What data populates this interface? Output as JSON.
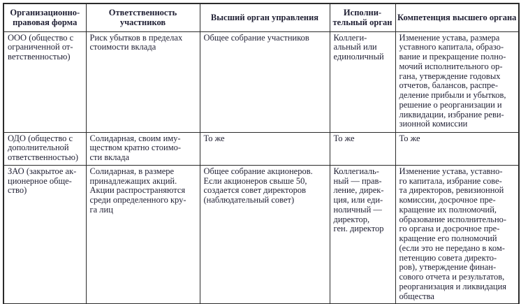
{
  "table": {
    "headers": [
      "Организационно-\nправовая форма",
      "Ответственность\nучастников",
      "Высший орган управления",
      "Исполни-\nтельный орган",
      "Компетенция высшего органа"
    ],
    "rows": [
      {
        "cells": [
          "ООО (общество с\nограниченной от-\nветственностью)",
          "Риск убытков в пределах\nстоимости вклада",
          "Общее собрание участников",
          "Коллеги-\nальный или\nединоличный",
          "Изменение устава, размера\nуставного капитала, образо-\nвание и прекращение полно-\nмочий исполнительного ор-\nгана, утверждение годовых\nотчетов, балансов, распре-\nделение прибыли и убытков,\nрешение о реорганизации и\nликвидации, избрание реви-\nзионной комиссии"
        ]
      },
      {
        "cells": [
          "ОДО (общество с\nдополнительной\nответственностью)",
          "Солидарная, своим иму-\nществом кратно стоимо-\nсти вклада",
          "То же",
          "То же",
          "То же"
        ]
      },
      {
        "cells": [
          "ЗАО (закрытое ак-\nционерное обще-\nство)",
          "Солидарная, в размере\nпринадлежащих акций.\nАкции распространяются\nсреди определенного кру-\nга лиц",
          "Общее собрание акционеров.\nЕсли акционеров свыше 50,\nсоздается совет директоров\n(наблюдательный совет)",
          "Коллегиаль-\nный — прав-\nление, дирек-\nция, или еди-\nноличный —\nдиректор,\nген. директор",
          "Изменение устава, уставно-\nго капитала, избрание сове-\nта директоров, ревизионной\nкомиссии, досрочное пре-\nкращение их полномочий,\nобразование исполнительно-\nго органа и досрочное пре-\nкращение его полномочий\n(если это не передано в ком-\nпетенцию совета директо-\nров), утверждение финан-\nсового отчета и результатов,\nреорганизация и ликвидация\nобщества"
        ]
      }
    ],
    "colors": {
      "border": "#2b2b2b",
      "text": "#1f1f33",
      "background": "#ffffff"
    }
  }
}
